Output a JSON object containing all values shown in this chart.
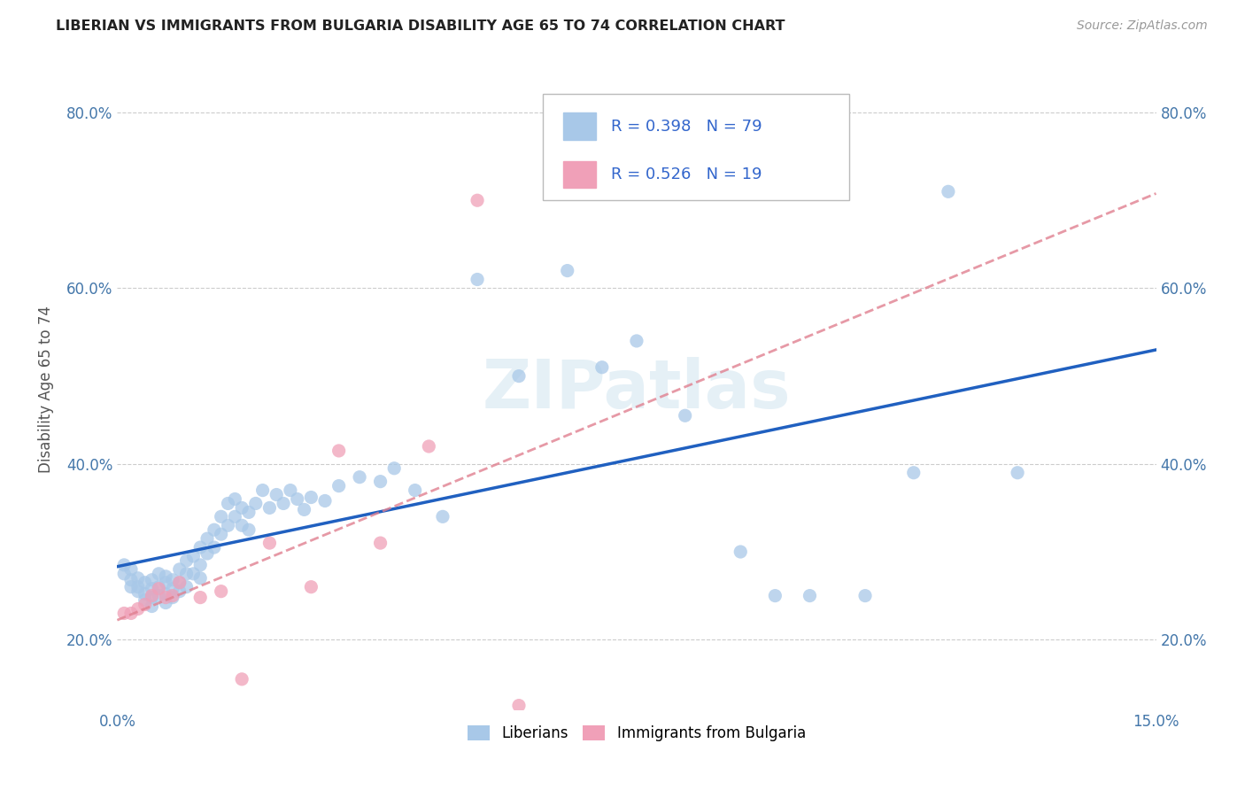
{
  "title": "LIBERIAN VS IMMIGRANTS FROM BULGARIA DISABILITY AGE 65 TO 74 CORRELATION CHART",
  "source": "Source: ZipAtlas.com",
  "ylabel": "Disability Age 65 to 74",
  "xlim": [
    0.0,
    0.15
  ],
  "ylim": [
    0.12,
    0.85
  ],
  "yticks": [
    0.2,
    0.4,
    0.6,
    0.8
  ],
  "ytick_labels": [
    "20.0%",
    "40.0%",
    "60.0%",
    "80.0%"
  ],
  "xtick_positions": [
    0.0,
    0.03,
    0.06,
    0.09,
    0.12,
    0.15
  ],
  "xtick_labels": [
    "0.0%",
    "",
    "",
    "",
    "",
    "15.0%"
  ],
  "watermark": "ZIPatlas",
  "legend_labels": [
    "Liberians",
    "Immigrants from Bulgaria"
  ],
  "liberian_color": "#a8c8e8",
  "bulgaria_color": "#f0a0b8",
  "liberian_line_color": "#2060c0",
  "bulgaria_line_color": "#e08090",
  "R_liberian": 0.398,
  "N_liberian": 79,
  "R_bulgaria": 0.526,
  "N_bulgaria": 19,
  "liberian_scatter_x": [
    0.001,
    0.001,
    0.002,
    0.002,
    0.002,
    0.003,
    0.003,
    0.003,
    0.004,
    0.004,
    0.004,
    0.005,
    0.005,
    0.005,
    0.005,
    0.006,
    0.006,
    0.006,
    0.007,
    0.007,
    0.007,
    0.007,
    0.008,
    0.008,
    0.008,
    0.009,
    0.009,
    0.009,
    0.01,
    0.01,
    0.01,
    0.011,
    0.011,
    0.012,
    0.012,
    0.012,
    0.013,
    0.013,
    0.014,
    0.014,
    0.015,
    0.015,
    0.016,
    0.016,
    0.017,
    0.017,
    0.018,
    0.018,
    0.019,
    0.019,
    0.02,
    0.021,
    0.022,
    0.023,
    0.024,
    0.025,
    0.026,
    0.027,
    0.028,
    0.03,
    0.032,
    0.035,
    0.038,
    0.04,
    0.043,
    0.047,
    0.052,
    0.058,
    0.065,
    0.07,
    0.075,
    0.082,
    0.09,
    0.095,
    0.1,
    0.108,
    0.115,
    0.12,
    0.13
  ],
  "liberian_scatter_y": [
    0.285,
    0.275,
    0.28,
    0.268,
    0.26,
    0.27,
    0.26,
    0.255,
    0.265,
    0.252,
    0.245,
    0.268,
    0.258,
    0.248,
    0.238,
    0.275,
    0.26,
    0.25,
    0.272,
    0.265,
    0.252,
    0.242,
    0.268,
    0.258,
    0.248,
    0.28,
    0.265,
    0.255,
    0.29,
    0.275,
    0.26,
    0.295,
    0.275,
    0.305,
    0.285,
    0.27,
    0.315,
    0.298,
    0.325,
    0.305,
    0.34,
    0.32,
    0.355,
    0.33,
    0.36,
    0.34,
    0.35,
    0.33,
    0.345,
    0.325,
    0.355,
    0.37,
    0.35,
    0.365,
    0.355,
    0.37,
    0.36,
    0.348,
    0.362,
    0.358,
    0.375,
    0.385,
    0.38,
    0.395,
    0.37,
    0.34,
    0.61,
    0.5,
    0.62,
    0.51,
    0.54,
    0.455,
    0.3,
    0.25,
    0.25,
    0.25,
    0.39,
    0.71,
    0.39
  ],
  "bulgaria_scatter_x": [
    0.001,
    0.002,
    0.003,
    0.004,
    0.005,
    0.006,
    0.007,
    0.008,
    0.009,
    0.012,
    0.015,
    0.018,
    0.022,
    0.028,
    0.032,
    0.038,
    0.045,
    0.052,
    0.058
  ],
  "bulgaria_scatter_y": [
    0.23,
    0.23,
    0.235,
    0.24,
    0.25,
    0.258,
    0.248,
    0.25,
    0.265,
    0.248,
    0.255,
    0.155,
    0.31,
    0.26,
    0.415,
    0.31,
    0.42,
    0.7,
    0.125
  ]
}
